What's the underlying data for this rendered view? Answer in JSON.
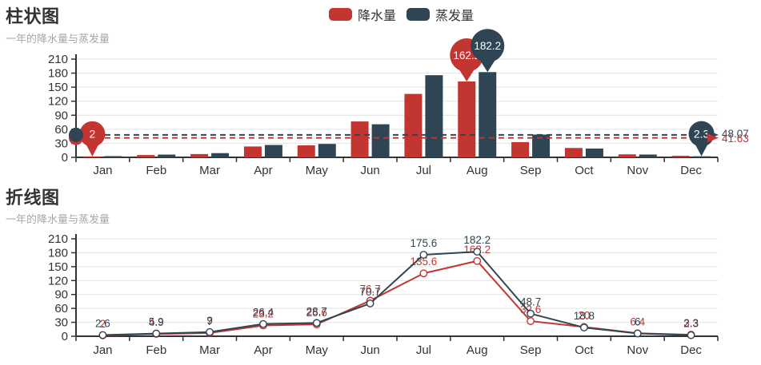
{
  "page": {
    "background": "#ffffff"
  },
  "colors": {
    "red": "#c23531",
    "navy": "#2f4554",
    "axis_line": "#333333",
    "axis_label": "#333333",
    "grid_line": "#e2e2e2",
    "title": "#333333",
    "subtitle": "#a7a7a7",
    "pin_text": "#ffffff",
    "marker_fill": "#ffffff"
  },
  "legend": {
    "items": [
      {
        "label": "降水量",
        "color": "#c23531"
      },
      {
        "label": "蒸发量",
        "color": "#2f4554"
      }
    ]
  },
  "chart_data": [
    {
      "type": "bar",
      "title": "柱状图",
      "subtitle": "一年的降水量与蒸发量",
      "categories": [
        "Jan",
        "Feb",
        "Mar",
        "Apr",
        "May",
        "Jun",
        "Jul",
        "Aug",
        "Sep",
        "Oct",
        "Nov",
        "Dec"
      ],
      "ylim": [
        0,
        210
      ],
      "ytick_step": 30,
      "ytick_labels": [
        "0",
        "30",
        "60",
        "90",
        "120",
        "150",
        "180",
        "210"
      ],
      "grid": true,
      "legend_position": "top-center",
      "series": [
        {
          "name": "降水量",
          "color": "#c23531",
          "values": [
            2,
            4.9,
            7,
            23.2,
            25.6,
            76.7,
            135.6,
            162.2,
            32.6,
            20,
            6.4,
            3.3
          ],
          "mark_max": {
            "category": "Aug",
            "value": 162.2,
            "label": "162.2"
          },
          "mark_min": {
            "category": "Jan",
            "value": 2,
            "label": "2"
          },
          "mark_average": {
            "value": 41.63,
            "label": "41.63"
          }
        },
        {
          "name": "蒸发量",
          "color": "#2f4554",
          "values": [
            2.6,
            5.9,
            9,
            26.4,
            28.7,
            70.7,
            175.6,
            182.2,
            48.7,
            18.8,
            6,
            2.3
          ],
          "mark_max": {
            "category": "Aug",
            "value": 182.2,
            "label": "182.2"
          },
          "mark_min": {
            "category": "Dec",
            "value": 2.3,
            "label": "2.3"
          },
          "mark_average": {
            "value": 48.07,
            "label": "48.07"
          }
        }
      ]
    },
    {
      "type": "line",
      "title": "折线图",
      "subtitle": "一年的降水量与蒸发量",
      "categories": [
        "Jan",
        "Feb",
        "Mar",
        "Apr",
        "May",
        "Jun",
        "Jul",
        "Aug",
        "Sep",
        "Oct",
        "Nov",
        "Dec"
      ],
      "ylim": [
        0,
        210
      ],
      "ytick_step": 30,
      "ytick_labels": [
        "0",
        "30",
        "60",
        "90",
        "120",
        "150",
        "180",
        "210"
      ],
      "grid": true,
      "series": [
        {
          "name": "降水量",
          "color": "#c23531",
          "values": [
            2,
            4.9,
            7,
            23.2,
            25.6,
            76.7,
            135.6,
            162.2,
            32.6,
            20,
            6.4,
            3.3
          ],
          "point_labels": [
            "2",
            "4.9",
            "7",
            "23.2",
            "25.6",
            "76.7",
            "135.6",
            "162.2",
            "32.6",
            "20",
            "6.4",
            "3.3"
          ]
        },
        {
          "name": "蒸发量",
          "color": "#2f4554",
          "values": [
            2.6,
            5.9,
            9,
            26.4,
            28.7,
            70.7,
            175.6,
            182.2,
            48.7,
            18.8,
            6,
            2.3
          ],
          "point_labels": [
            "2.6",
            "5.9",
            "9",
            "26.4",
            "28.7",
            "70.7",
            "175.6",
            "182.2",
            "48.7",
            "18.8",
            "6",
            "2.3"
          ]
        }
      ]
    }
  ]
}
